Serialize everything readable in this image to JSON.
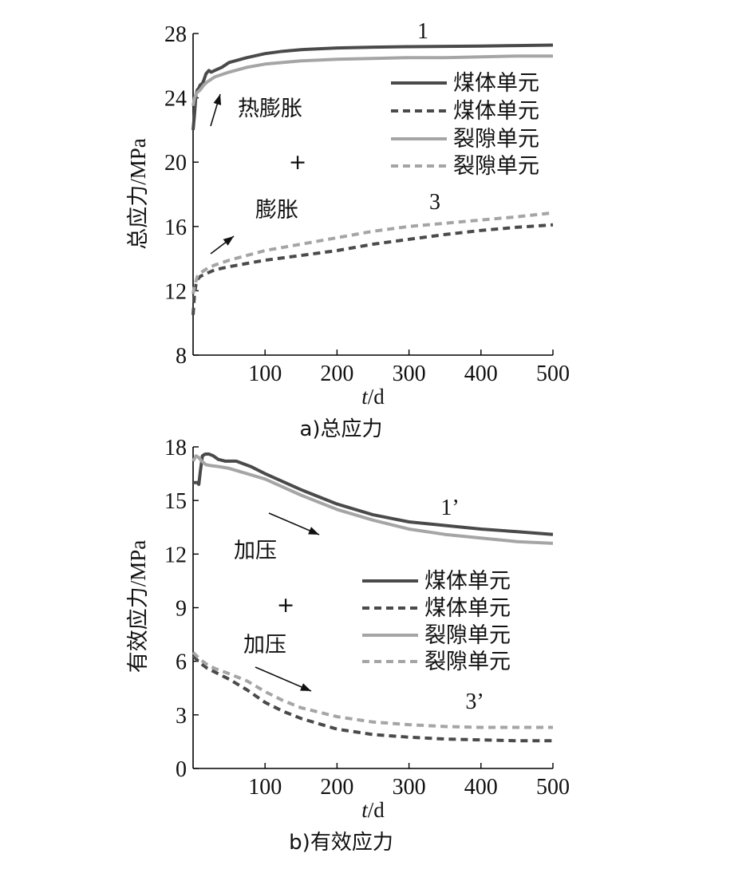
{
  "chart_data": [
    {
      "type": "line",
      "caption": "a)总应力",
      "xlabel": "t/d",
      "ylabel": "总应力/MPa",
      "xlim": [
        0,
        500
      ],
      "ylim": [
        8,
        28
      ],
      "xticks": [
        "100",
        "200",
        "300",
        "400",
        "500"
      ],
      "yticks": [
        "8",
        "12",
        "16",
        "20",
        "24",
        "28"
      ],
      "legend": {
        "placement": "right-middle",
        "entries": [
          "煤体单元",
          "煤体单元",
          "裂隙单元",
          "裂隙单元"
        ]
      },
      "curve_labels": [
        "1",
        "3"
      ],
      "annotations": [
        "热膨胀",
        "膨胀",
        "+"
      ],
      "series": [
        {
          "name": "煤体单元",
          "style": "solid",
          "color": "#4a4a4a",
          "x": [
            0,
            2,
            4,
            6,
            8,
            10,
            13,
            15,
            18,
            22,
            25,
            30,
            40,
            50,
            75,
            100,
            125,
            150,
            200,
            250,
            300,
            350,
            400,
            450,
            500
          ],
          "y": [
            22.0,
            23.0,
            24.2,
            24.5,
            24.6,
            24.8,
            24.9,
            25.1,
            25.5,
            25.7,
            25.6,
            25.7,
            25.9,
            26.2,
            26.5,
            26.75,
            26.9,
            27.0,
            27.1,
            27.15,
            27.18,
            27.2,
            27.22,
            27.25,
            27.28
          ]
        },
        {
          "name": "煤体单元",
          "style": "dashed",
          "color": "#4a4a4a",
          "x": [
            0,
            2,
            4,
            6,
            10,
            15,
            20,
            30,
            50,
            75,
            100,
            150,
            200,
            250,
            300,
            350,
            400,
            450,
            500
          ],
          "y": [
            10.5,
            11.8,
            12.4,
            12.7,
            12.9,
            13.0,
            13.1,
            13.3,
            13.5,
            13.7,
            13.9,
            14.2,
            14.5,
            14.9,
            15.2,
            15.5,
            15.75,
            15.95,
            16.1
          ]
        },
        {
          "name": "裂隙单元",
          "style": "solid",
          "color": "#a5a5a5",
          "x": [
            0,
            2,
            5,
            10,
            15,
            20,
            30,
            50,
            75,
            100,
            150,
            200,
            250,
            300,
            350,
            400,
            450,
            500
          ],
          "y": [
            23.5,
            24.0,
            24.3,
            24.5,
            24.8,
            25.0,
            25.3,
            25.6,
            25.9,
            26.1,
            26.3,
            26.4,
            26.45,
            26.5,
            26.5,
            26.55,
            26.6,
            26.6
          ]
        },
        {
          "name": "裂隙单元",
          "style": "dashed",
          "color": "#a5a5a5",
          "x": [
            0,
            2,
            4,
            6,
            10,
            20,
            30,
            50,
            75,
            100,
            150,
            200,
            250,
            300,
            350,
            400,
            450,
            500
          ],
          "y": [
            11.8,
            12.3,
            12.6,
            12.9,
            13.1,
            13.4,
            13.6,
            13.9,
            14.2,
            14.5,
            14.9,
            15.3,
            15.7,
            16.0,
            16.2,
            16.4,
            16.6,
            16.85
          ]
        }
      ]
    },
    {
      "type": "line",
      "caption": "b)有效应力",
      "xlabel": "t/d",
      "ylabel": "有效应力/MPa",
      "xlim": [
        0,
        500
      ],
      "ylim": [
        0,
        18
      ],
      "xticks": [
        "100",
        "200",
        "300",
        "400",
        "500"
      ],
      "yticks": [
        "0",
        "3",
        "6",
        "9",
        "12",
        "15",
        "18"
      ],
      "legend": {
        "placement": "right-middle",
        "entries": [
          "煤体单元",
          "煤体单元",
          "裂隙单元",
          "裂隙单元"
        ]
      },
      "curve_labels": [
        "1’",
        "3’"
      ],
      "annotations": [
        "加压",
        "加压",
        "+"
      ],
      "series": [
        {
          "name": "煤体单元",
          "style": "solid",
          "color": "#4a4a4a",
          "x": [
            0,
            3,
            6,
            8,
            10,
            13,
            17,
            22,
            28,
            35,
            45,
            60,
            80,
            100,
            150,
            200,
            250,
            300,
            350,
            400,
            450,
            500
          ],
          "y": [
            16.0,
            16.0,
            16.0,
            15.9,
            16.6,
            17.5,
            17.6,
            17.6,
            17.5,
            17.3,
            17.2,
            17.2,
            16.9,
            16.5,
            15.6,
            14.8,
            14.2,
            13.8,
            13.6,
            13.4,
            13.25,
            13.1
          ]
        },
        {
          "name": "煤体单元",
          "style": "dashed",
          "color": "#4a4a4a",
          "x": [
            0,
            10,
            20,
            30,
            50,
            75,
            100,
            125,
            150,
            200,
            250,
            300,
            350,
            400,
            450,
            500
          ],
          "y": [
            6.3,
            5.9,
            5.6,
            5.4,
            5.0,
            4.4,
            3.7,
            3.2,
            2.8,
            2.2,
            1.9,
            1.75,
            1.65,
            1.6,
            1.55,
            1.55
          ]
        },
        {
          "name": "裂隙单元",
          "style": "solid",
          "color": "#a5a5a5",
          "x": [
            0,
            4,
            8,
            12,
            18,
            25,
            35,
            50,
            75,
            100,
            150,
            200,
            250,
            300,
            350,
            400,
            450,
            500
          ],
          "y": [
            17.2,
            17.5,
            17.4,
            17.2,
            17.0,
            16.95,
            16.9,
            16.8,
            16.5,
            16.2,
            15.3,
            14.5,
            13.9,
            13.4,
            13.1,
            12.9,
            12.7,
            12.6
          ]
        },
        {
          "name": "裂隙单元",
          "style": "dashed",
          "color": "#a5a5a5",
          "x": [
            0,
            10,
            20,
            30,
            50,
            75,
            100,
            125,
            150,
            200,
            250,
            300,
            350,
            400,
            450,
            500
          ],
          "y": [
            6.5,
            6.1,
            5.8,
            5.6,
            5.3,
            4.9,
            4.3,
            3.8,
            3.4,
            2.9,
            2.6,
            2.45,
            2.35,
            2.3,
            2.3,
            2.3
          ]
        }
      ]
    }
  ]
}
